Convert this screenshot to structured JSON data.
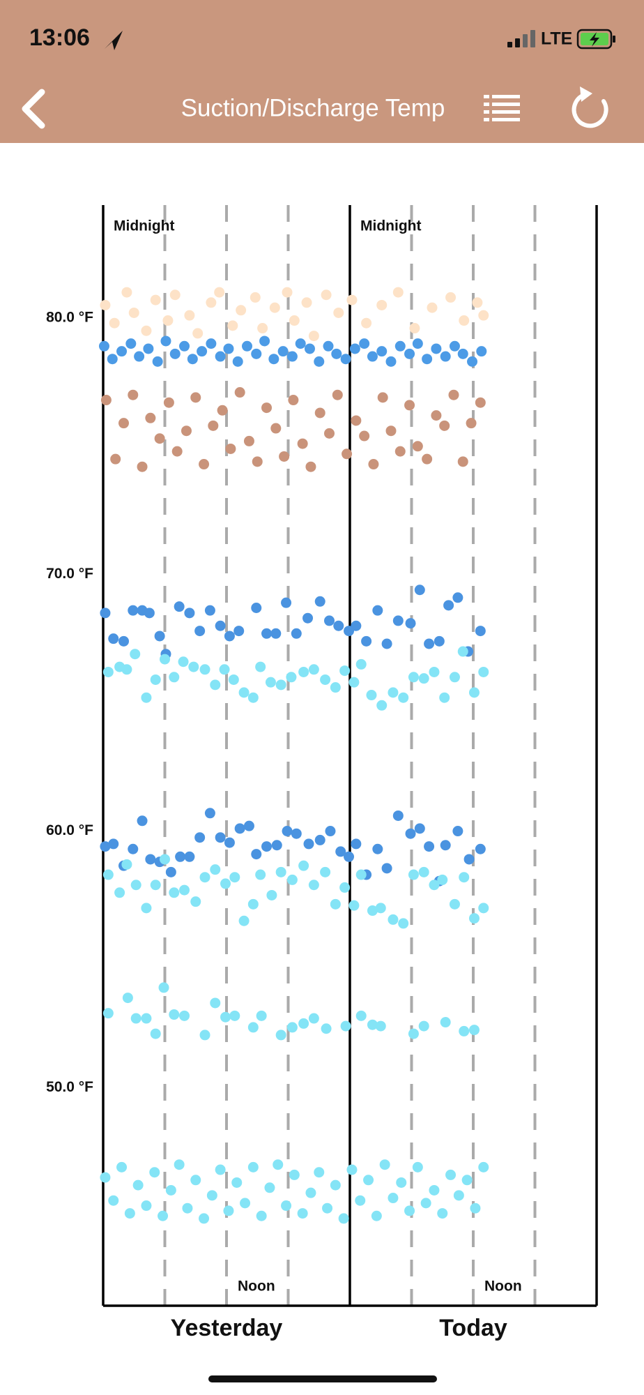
{
  "status_bar": {
    "time": "13:06",
    "network": "LTE"
  },
  "header": {
    "title": "Suction/Discharge Temp"
  },
  "chart_data": {
    "type": "scatter",
    "xlim": [
      0,
      48
    ],
    "ylim": [
      41.5,
      84.4
    ],
    "yticks": [
      {
        "value": 50,
        "label": "50.0 °F"
      },
      {
        "value": 60,
        "label": "60.0 °F"
      },
      {
        "value": 70,
        "label": "70.0 °F"
      },
      {
        "value": 80,
        "label": "80.0 °F"
      }
    ],
    "xticks": [
      {
        "value": 12,
        "label": "Yesterday"
      },
      {
        "value": 36,
        "label": "Today"
      }
    ],
    "top_labels": [
      {
        "value": 0,
        "label": "Midnight"
      },
      {
        "value": 24,
        "label": "Midnight"
      }
    ],
    "bottom_labels": [
      {
        "value": 12,
        "label": "Noon"
      },
      {
        "value": 36,
        "label": "Noon"
      }
    ],
    "solid_lines": [
      0,
      24,
      48
    ],
    "dashed_lines": [
      6,
      12,
      18,
      30,
      36,
      42
    ],
    "series": [
      {
        "color": "#fde2c7",
        "x": [
          0.2,
          1.1,
          2.3,
          3.0,
          4.2,
          5.1,
          6.3,
          7.0,
          8.4,
          9.2,
          10.5,
          11.3,
          12.6,
          13.4,
          14.8,
          15.5,
          16.7,
          17.9,
          18.6,
          19.8,
          20.5,
          21.7,
          22.9,
          24.2,
          25.6,
          27.1,
          28.7,
          30.3,
          32.0,
          33.8,
          35.1,
          36.4,
          37.0
        ],
        "values": [
          80.5,
          79.8,
          81.0,
          80.2,
          79.5,
          80.7,
          79.9,
          80.9,
          80.1,
          79.4,
          80.6,
          81.0,
          79.7,
          80.3,
          80.8,
          79.6,
          80.4,
          81.0,
          79.9,
          80.6,
          79.3,
          80.9,
          80.2,
          80.7,
          79.8,
          80.5,
          81.0,
          79.6,
          80.4,
          80.8,
          79.9,
          80.6,
          80.1
        ]
      },
      {
        "color": "#4c9be6",
        "x": [
          0.1,
          0.9,
          1.8,
          2.7,
          3.5,
          4.4,
          5.3,
          6.1,
          7.0,
          7.9,
          8.7,
          9.6,
          10.5,
          11.4,
          12.2,
          13.1,
          14.0,
          14.9,
          15.7,
          16.6,
          17.5,
          18.4,
          19.2,
          20.1,
          21.0,
          21.9,
          22.7,
          23.6,
          24.5,
          25.4,
          26.2,
          27.1,
          28.0,
          28.9,
          29.8,
          30.6,
          31.5,
          32.4,
          33.3,
          34.2,
          35.0,
          35.9,
          36.8
        ],
        "values": [
          78.9,
          78.4,
          78.7,
          79.0,
          78.5,
          78.8,
          78.3,
          79.1,
          78.6,
          78.9,
          78.4,
          78.7,
          79.0,
          78.5,
          78.8,
          78.3,
          78.9,
          78.6,
          79.1,
          78.4,
          78.7,
          78.5,
          79.0,
          78.8,
          78.3,
          78.9,
          78.6,
          78.4,
          78.8,
          79.0,
          78.5,
          78.7,
          78.3,
          78.9,
          78.6,
          79.0,
          78.4,
          78.8,
          78.5,
          78.9,
          78.6,
          78.3,
          78.7
        ]
      },
      {
        "color": "#c9937a",
        "x": [
          0.3,
          1.2,
          2.0,
          2.9,
          3.8,
          4.6,
          5.5,
          6.4,
          7.2,
          8.1,
          9.0,
          9.8,
          10.7,
          11.6,
          12.4,
          13.3,
          14.2,
          15.0,
          15.9,
          16.8,
          17.6,
          18.5,
          19.4,
          20.2,
          21.1,
          22.0,
          22.8,
          23.7,
          24.6,
          25.4,
          26.3,
          27.2,
          28.0,
          28.9,
          29.8,
          30.6,
          31.5,
          32.4,
          33.2,
          34.1,
          35.0,
          35.8,
          36.7
        ],
        "values": [
          76.8,
          74.5,
          75.9,
          77.0,
          74.2,
          76.1,
          75.3,
          76.7,
          74.8,
          75.6,
          76.9,
          74.3,
          75.8,
          76.4,
          74.9,
          77.1,
          75.2,
          74.4,
          76.5,
          75.7,
          74.6,
          76.8,
          75.1,
          74.2,
          76.3,
          75.5,
          77.0,
          74.7,
          76.0,
          75.4,
          74.3,
          76.9,
          75.6,
          74.8,
          76.6,
          75.0,
          74.5,
          76.2,
          75.8,
          77.0,
          74.4,
          75.9,
          76.7
        ]
      },
      {
        "color": "#4a93e0",
        "x": [
          0.2,
          1.0,
          2.0,
          2.9,
          3.8,
          4.5,
          5.5,
          6.1,
          7.4,
          8.4,
          9.4,
          10.4,
          11.4,
          12.3,
          13.2,
          14.9,
          15.9,
          16.8,
          17.8,
          18.8,
          19.9,
          21.1,
          22.0,
          22.9,
          23.9,
          24.6,
          25.6,
          26.7,
          27.6,
          28.7,
          29.9,
          30.8,
          31.7,
          32.7,
          33.6,
          34.5,
          35.5,
          36.7
        ],
        "values": [
          68.5,
          67.5,
          67.4,
          68.6,
          68.6,
          68.5,
          67.6,
          66.9,
          68.75,
          68.5,
          67.8,
          68.6,
          68.0,
          67.6,
          67.8,
          68.7,
          67.7,
          67.7,
          68.9,
          67.7,
          68.3,
          68.95,
          68.2,
          68.0,
          67.8,
          68.0,
          67.4,
          68.6,
          67.3,
          68.2,
          68.1,
          69.4,
          67.3,
          67.4,
          68.8,
          69.1,
          67.0,
          67.8
        ]
      },
      {
        "color": "#84e4f6",
        "x": [
          0.5,
          1.6,
          2.3,
          3.1,
          4.2,
          5.1,
          6.0,
          6.9,
          7.8,
          8.8,
          9.9,
          10.9,
          11.8,
          12.7,
          13.7,
          14.6,
          15.3,
          16.3,
          17.3,
          18.3,
          19.5,
          20.5,
          21.6,
          22.6,
          23.5,
          24.4,
          25.1,
          26.1,
          27.1,
          28.2,
          29.2,
          30.2,
          31.2,
          32.2,
          33.2,
          34.2,
          35.0,
          36.1,
          37.0
        ],
        "values": [
          66.2,
          66.4,
          66.3,
          66.9,
          65.2,
          65.9,
          66.7,
          66.0,
          66.6,
          66.4,
          66.3,
          65.7,
          66.3,
          65.9,
          65.4,
          65.2,
          66.4,
          65.8,
          65.7,
          66.0,
          66.2,
          66.3,
          65.9,
          65.6,
          66.25,
          65.8,
          66.5,
          65.3,
          64.9,
          65.4,
          65.2,
          66.0,
          65.95,
          66.2,
          65.2,
          66.0,
          67.0,
          65.4,
          66.2
        ]
      },
      {
        "color": "#4a93e0",
        "x": [
          0.2,
          1.0,
          2.0,
          2.9,
          3.8,
          4.6,
          5.5,
          6.6,
          7.5,
          8.4,
          9.4,
          10.4,
          11.4,
          12.3,
          13.3,
          14.2,
          14.9,
          15.9,
          16.9,
          17.9,
          18.8,
          20.0,
          21.1,
          22.1,
          23.1,
          23.9,
          24.6,
          25.6,
          26.7,
          27.6,
          28.7,
          29.9,
          30.8,
          31.7,
          32.7,
          33.3,
          34.5,
          35.6,
          36.7
        ],
        "values": [
          59.4,
          59.5,
          58.65,
          59.3,
          60.4,
          58.9,
          58.8,
          58.4,
          59.0,
          59.0,
          59.75,
          60.7,
          59.75,
          59.55,
          60.1,
          60.2,
          59.1,
          59.4,
          59.45,
          60.0,
          59.9,
          59.5,
          59.65,
          60.0,
          59.2,
          59.0,
          59.5,
          58.3,
          59.3,
          58.55,
          60.6,
          59.9,
          60.1,
          59.4,
          58.05,
          59.45,
          60.0,
          58.9,
          59.3
        ]
      },
      {
        "color": "#84e4f6",
        "x": [
          0.5,
          1.6,
          2.3,
          3.2,
          4.2,
          5.1,
          6.0,
          6.9,
          7.9,
          9.0,
          9.9,
          10.9,
          11.9,
          12.8,
          13.7,
          14.6,
          15.3,
          16.4,
          17.3,
          18.4,
          19.5,
          20.5,
          21.6,
          22.6,
          23.5,
          24.4,
          25.1,
          26.2,
          27.0,
          28.2,
          29.2,
          30.2,
          31.2,
          32.2,
          33.0,
          34.2,
          35.1,
          36.1,
          37.0
        ],
        "values": [
          58.3,
          57.6,
          58.7,
          57.9,
          57.0,
          57.9,
          58.9,
          57.6,
          57.7,
          57.25,
          58.2,
          58.5,
          57.95,
          58.2,
          56.5,
          57.15,
          58.3,
          57.5,
          58.4,
          58.1,
          58.65,
          57.9,
          58.4,
          57.15,
          57.8,
          57.1,
          58.3,
          56.9,
          57.0,
          56.55,
          56.4,
          58.3,
          58.4,
          57.9,
          58.1,
          57.15,
          58.2,
          56.6,
          57.0
        ]
      },
      {
        "color": "#84e4f6",
        "x": [
          0.5,
          2.4,
          3.2,
          4.2,
          5.1,
          5.9,
          6.9,
          7.9,
          9.9,
          10.9,
          11.9,
          12.8,
          14.6,
          15.4,
          17.3,
          18.4,
          19.5,
          20.5,
          21.7,
          23.6,
          25.1,
          26.2,
          27.0,
          30.2,
          31.2,
          33.3,
          35.1,
          36.1
        ],
        "values": [
          52.9,
          53.5,
          52.7,
          52.7,
          52.1,
          53.9,
          52.85,
          52.8,
          52.05,
          53.3,
          52.75,
          52.8,
          52.35,
          52.8,
          52.05,
          52.35,
          52.5,
          52.7,
          52.3,
          52.4,
          52.8,
          52.45,
          52.4,
          52.1,
          52.4,
          52.55,
          52.2,
          52.25
        ]
      },
      {
        "color": "#84e4f6",
        "x": [
          0.2,
          1.0,
          1.8,
          2.6,
          3.4,
          4.2,
          5.0,
          5.8,
          6.6,
          7.4,
          8.2,
          9.0,
          9.8,
          10.6,
          11.4,
          12.2,
          13.0,
          13.8,
          14.6,
          15.4,
          16.2,
          17.0,
          17.8,
          18.6,
          19.4,
          20.2,
          21.0,
          21.8,
          22.6,
          23.4,
          24.2,
          25.0,
          25.8,
          26.6,
          27.4,
          28.2,
          29.0,
          29.8,
          30.6,
          31.4,
          32.2,
          33.0,
          33.8,
          34.6,
          35.4,
          36.2,
          37.0
        ],
        "values": [
          46.5,
          45.6,
          46.9,
          45.1,
          46.2,
          45.4,
          46.7,
          45.0,
          46.0,
          47.0,
          45.3,
          46.4,
          44.9,
          45.8,
          46.8,
          45.2,
          46.3,
          45.5,
          46.9,
          45.0,
          46.1,
          47.0,
          45.4,
          46.6,
          45.1,
          45.9,
          46.7,
          45.3,
          46.2,
          44.9,
          46.8,
          45.6,
          46.4,
          45.0,
          47.0,
          45.7,
          46.3,
          45.2,
          46.9,
          45.5,
          46.0,
          45.1,
          46.6,
          45.8,
          46.4,
          45.3,
          46.9
        ]
      }
    ]
  }
}
